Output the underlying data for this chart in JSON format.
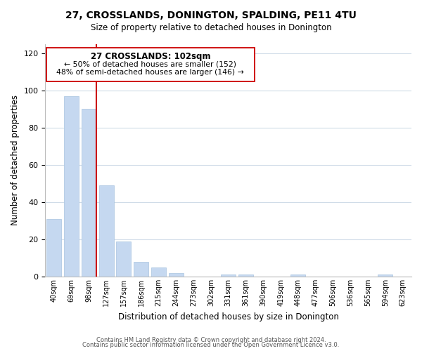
{
  "title": "27, CROSSLANDS, DONINGTON, SPALDING, PE11 4TU",
  "subtitle": "Size of property relative to detached houses in Donington",
  "xlabel": "Distribution of detached houses by size in Donington",
  "ylabel": "Number of detached properties",
  "bar_color": "#c5d8f0",
  "bar_edge_color": "#a8c4e0",
  "marker_color": "#cc0000",
  "categories": [
    "40sqm",
    "69sqm",
    "98sqm",
    "127sqm",
    "157sqm",
    "186sqm",
    "215sqm",
    "244sqm",
    "273sqm",
    "302sqm",
    "331sqm",
    "361sqm",
    "390sqm",
    "419sqm",
    "448sqm",
    "477sqm",
    "506sqm",
    "536sqm",
    "565sqm",
    "594sqm",
    "623sqm"
  ],
  "values": [
    31,
    97,
    90,
    49,
    19,
    8,
    5,
    2,
    0,
    0,
    1,
    1,
    0,
    0,
    1,
    0,
    0,
    0,
    0,
    1,
    0
  ],
  "ylim": [
    0,
    125
  ],
  "yticks": [
    0,
    20,
    40,
    60,
    80,
    100,
    120
  ],
  "marker_bar_index": 2,
  "annotation_title": "27 CROSSLANDS: 102sqm",
  "annotation_line1": "← 50% of detached houses are smaller (152)",
  "annotation_line2": "48% of semi-detached houses are larger (146) →",
  "footer1": "Contains HM Land Registry data © Crown copyright and database right 2024.",
  "footer2": "Contains public sector information licensed under the Open Government Licence v3.0.",
  "background_color": "#ffffff",
  "grid_color": "#d0dce8"
}
